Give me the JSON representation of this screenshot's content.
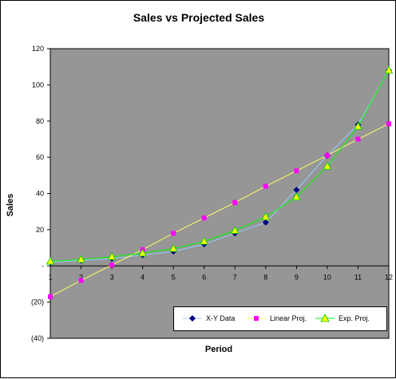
{
  "chart_data": {
    "type": "line",
    "title": "Sales vs Projected Sales",
    "xlabel": "Period",
    "ylabel": "Sales",
    "categories": [
      1,
      2,
      3,
      4,
      5,
      6,
      7,
      8,
      9,
      10,
      11,
      12
    ],
    "xlim": [
      1,
      12
    ],
    "ylim": [
      -40,
      120
    ],
    "y_ticks": [
      -40,
      -20,
      0,
      20,
      40,
      60,
      80,
      100,
      120
    ],
    "y_tick_labels": [
      "(40)",
      "(20)",
      "-",
      "20",
      "40",
      "60",
      "80",
      "100",
      "120"
    ],
    "plot_background": "#969696",
    "grid": false,
    "legend_position": "bottom-right",
    "series": [
      {
        "name": "X-Y Data",
        "values": [
          2,
          3,
          4,
          6,
          8,
          12,
          18,
          24,
          42,
          61,
          78,
          108
        ],
        "line_color": "#99ccff",
        "marker": "diamond",
        "marker_color": "#000080"
      },
      {
        "name": "Linear Proj.",
        "values": [
          -17,
          -8,
          0.5,
          9,
          18,
          26.5,
          35,
          44,
          52.5,
          61,
          70,
          78.5
        ],
        "line_color": "#ffff66",
        "marker": "square",
        "marker_color": "#ff00ff"
      },
      {
        "name": "Exp. Proj.",
        "values": [
          2.5,
          3.5,
          5,
          7,
          9.5,
          13.5,
          19.5,
          27,
          38,
          55,
          77,
          108
        ],
        "line_color": "#00ff00",
        "marker": "triangle",
        "marker_color": "#ffff00"
      }
    ]
  }
}
